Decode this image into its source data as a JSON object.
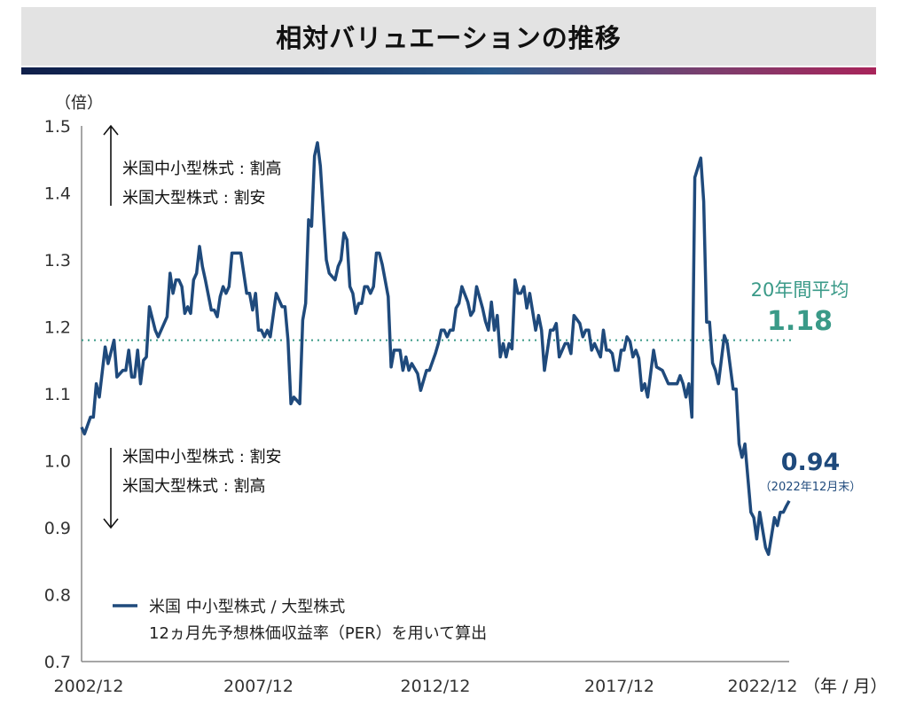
{
  "title": "相対バリュエーションの推移",
  "colors": {
    "series": "#1f4a7c",
    "average": "#3a9a88",
    "axis": "#888888",
    "text": "#222222"
  },
  "chart_data": {
    "type": "line",
    "title": "相対バリュエーションの推移",
    "ylabel": "（倍）",
    "xlabel_unit": "（年 / 月）",
    "ylim": [
      0.7,
      1.5
    ],
    "yticks": [
      "0.7",
      "0.8",
      "0.9",
      "1.0",
      "1.1",
      "1.2",
      "1.3",
      "1.4",
      "1.5"
    ],
    "xlim": [
      "2002/12",
      "2022/12"
    ],
    "xticks": [
      "2002/12",
      "2007/12",
      "2012/12",
      "2017/12",
      "2022/12"
    ],
    "grid": false,
    "legend": {
      "placement": "bottom-left",
      "line1": "米国 中小型株式 / 大型株式",
      "line2": "12ヵ月先予想株価収益率（PER）を用いて算出"
    },
    "annotations": {
      "upper": [
        "米国中小型株式 : 割高",
        "米国大型株式 : 割安"
      ],
      "lower": [
        "米国中小型株式 : 割安",
        "米国大型株式 : 割高"
      ],
      "average_label": "20年間平均",
      "average_value": "1.18",
      "latest_value": "0.94",
      "latest_note": "（2022年12月末）"
    },
    "average": 1.18,
    "series": [
      {
        "points": [
          [
            "2002/12",
            1.05
          ],
          [
            "2003/01",
            1.04
          ],
          [
            "2003/03",
            1.065
          ],
          [
            "2003/04",
            1.065
          ],
          [
            "2003/05",
            1.115
          ],
          [
            "2003/06",
            1.095
          ],
          [
            "2003/08",
            1.17
          ],
          [
            "2003/09",
            1.145
          ],
          [
            "2003/11",
            1.18
          ],
          [
            "2003/12",
            1.125
          ],
          [
            "2004/02",
            1.135
          ],
          [
            "2004/03",
            1.135
          ],
          [
            "2004/04",
            1.165
          ],
          [
            "2004/05",
            1.125
          ],
          [
            "2004/06",
            1.125
          ],
          [
            "2004/07",
            1.165
          ],
          [
            "2004/08",
            1.115
          ],
          [
            "2004/09",
            1.15
          ],
          [
            "2004/10",
            1.155
          ],
          [
            "2004/11",
            1.23
          ],
          [
            "2005/01",
            1.195
          ],
          [
            "2005/02",
            1.185
          ],
          [
            "2005/05",
            1.215
          ],
          [
            "2005/06",
            1.28
          ],
          [
            "2005/07",
            1.25
          ],
          [
            "2005/08",
            1.27
          ],
          [
            "2005/09",
            1.27
          ],
          [
            "2005/10",
            1.26
          ],
          [
            "2005/11",
            1.22
          ],
          [
            "2005/12",
            1.23
          ],
          [
            "2006/01",
            1.22
          ],
          [
            "2006/02",
            1.27
          ],
          [
            "2006/03",
            1.28
          ],
          [
            "2006/04",
            1.32
          ],
          [
            "2006/05",
            1.29
          ],
          [
            "2006/06",
            1.27
          ],
          [
            "2006/08",
            1.225
          ],
          [
            "2006/09",
            1.225
          ],
          [
            "2006/10",
            1.215
          ],
          [
            "2006/11",
            1.245
          ],
          [
            "2006/12",
            1.26
          ],
          [
            "2007/01",
            1.25
          ],
          [
            "2007/02",
            1.26
          ],
          [
            "2007/03",
            1.31
          ],
          [
            "2007/06",
            1.31
          ],
          [
            "2007/08",
            1.25
          ],
          [
            "2007/09",
            1.25
          ],
          [
            "2007/10",
            1.225
          ],
          [
            "2007/11",
            1.25
          ],
          [
            "2007/12",
            1.195
          ],
          [
            "2008/01",
            1.195
          ],
          [
            "2008/02",
            1.185
          ],
          [
            "2008/03",
            1.195
          ],
          [
            "2008/04",
            1.185
          ],
          [
            "2008/06",
            1.25
          ],
          [
            "2008/08",
            1.23
          ],
          [
            "2008/09",
            1.23
          ],
          [
            "2008/10",
            1.18
          ],
          [
            "2008/11",
            1.085
          ],
          [
            "2008/12",
            1.095
          ],
          [
            "2009/02",
            1.085
          ],
          [
            "2009/03",
            1.21
          ],
          [
            "2009/04",
            1.235
          ],
          [
            "2009/05",
            1.36
          ],
          [
            "2009/06",
            1.35
          ],
          [
            "2009/07",
            1.455
          ],
          [
            "2009/08",
            1.475
          ],
          [
            "2009/09",
            1.44
          ],
          [
            "2009/11",
            1.3
          ],
          [
            "2009/12",
            1.28
          ],
          [
            "2010/02",
            1.27
          ],
          [
            "2010/03",
            1.29
          ],
          [
            "2010/04",
            1.3
          ],
          [
            "2010/05",
            1.34
          ],
          [
            "2010/06",
            1.33
          ],
          [
            "2010/07",
            1.26
          ],
          [
            "2010/08",
            1.25
          ],
          [
            "2010/09",
            1.22
          ],
          [
            "2010/10",
            1.235
          ],
          [
            "2010/11",
            1.235
          ],
          [
            "2010/12",
            1.26
          ],
          [
            "2011/01",
            1.26
          ],
          [
            "2011/02",
            1.25
          ],
          [
            "2011/03",
            1.26
          ],
          [
            "2011/04",
            1.31
          ],
          [
            "2011/05",
            1.31
          ],
          [
            "2011/06",
            1.293
          ],
          [
            "2011/08",
            1.245
          ],
          [
            "2011/09",
            1.14
          ],
          [
            "2011/10",
            1.165
          ],
          [
            "2011/12",
            1.165
          ],
          [
            "2012/01",
            1.135
          ],
          [
            "2012/02",
            1.155
          ],
          [
            "2012/03",
            1.135
          ],
          [
            "2012/04",
            1.145
          ],
          [
            "2012/06",
            1.13
          ],
          [
            "2012/07",
            1.105
          ],
          [
            "2012/09",
            1.135
          ],
          [
            "2012/10",
            1.135
          ],
          [
            "2012/12",
            1.16
          ],
          [
            "2013/01",
            1.175
          ],
          [
            "2013/02",
            1.195
          ],
          [
            "2013/03",
            1.195
          ],
          [
            "2013/04",
            1.185
          ],
          [
            "2013/05",
            1.195
          ],
          [
            "2013/06",
            1.195
          ],
          [
            "2013/07",
            1.228
          ],
          [
            "2013/08",
            1.235
          ],
          [
            "2013/09",
            1.26
          ],
          [
            "2013/11",
            1.237
          ],
          [
            "2013/12",
            1.217
          ],
          [
            "2014/01",
            1.224
          ],
          [
            "2014/02",
            1.26
          ],
          [
            "2014/04",
            1.228
          ],
          [
            "2014/05",
            1.208
          ],
          [
            "2014/06",
            1.195
          ],
          [
            "2014/07",
            1.237
          ],
          [
            "2014/08",
            1.195
          ],
          [
            "2014/09",
            1.217
          ],
          [
            "2014/10",
            1.155
          ],
          [
            "2014/11",
            1.175
          ],
          [
            "2014/12",
            1.155
          ],
          [
            "2015/01",
            1.175
          ],
          [
            "2015/02",
            1.167
          ],
          [
            "2015/03",
            1.27
          ],
          [
            "2015/04",
            1.25
          ],
          [
            "2015/05",
            1.25
          ],
          [
            "2015/06",
            1.26
          ],
          [
            "2015/07",
            1.228
          ],
          [
            "2015/08",
            1.25
          ],
          [
            "2015/10",
            1.195
          ],
          [
            "2015/11",
            1.217
          ],
          [
            "2015/12",
            1.195
          ],
          [
            "2016/01",
            1.135
          ],
          [
            "2016/03",
            1.195
          ],
          [
            "2016/04",
            1.195
          ],
          [
            "2016/05",
            1.205
          ],
          [
            "2016/06",
            1.155
          ],
          [
            "2016/08",
            1.175
          ],
          [
            "2016/09",
            1.175
          ],
          [
            "2016/10",
            1.16
          ],
          [
            "2016/11",
            1.217
          ],
          [
            "2017/01",
            1.205
          ],
          [
            "2017/02",
            1.185
          ],
          [
            "2017/03",
            1.195
          ],
          [
            "2017/04",
            1.195
          ],
          [
            "2017/05",
            1.165
          ],
          [
            "2017/06",
            1.175
          ],
          [
            "2017/08",
            1.155
          ],
          [
            "2017/09",
            1.195
          ],
          [
            "2017/10",
            1.165
          ],
          [
            "2017/11",
            1.165
          ],
          [
            "2017/12",
            1.16
          ],
          [
            "2018/01",
            1.135
          ],
          [
            "2018/02",
            1.135
          ],
          [
            "2018/03",
            1.165
          ],
          [
            "2018/04",
            1.165
          ],
          [
            "2018/05",
            1.185
          ],
          [
            "2018/06",
            1.178
          ],
          [
            "2018/07",
            1.155
          ],
          [
            "2018/08",
            1.165
          ],
          [
            "2018/09",
            1.153
          ],
          [
            "2018/10",
            1.105
          ],
          [
            "2018/11",
            1.115
          ],
          [
            "2018/12",
            1.095
          ],
          [
            "2019/02",
            1.165
          ],
          [
            "2019/03",
            1.14
          ],
          [
            "2019/05",
            1.135
          ],
          [
            "2019/07",
            1.115
          ],
          [
            "2019/10",
            1.115
          ],
          [
            "2019/11",
            1.127
          ],
          [
            "2019/12",
            1.115
          ],
          [
            "2020/01",
            1.095
          ],
          [
            "2020/02",
            1.115
          ],
          [
            "2020/03",
            1.065
          ],
          [
            "2020/04",
            1.423
          ],
          [
            "2020/06",
            1.452
          ],
          [
            "2020/07",
            1.387
          ],
          [
            "2020/08",
            1.207
          ],
          [
            "2020/09",
            1.207
          ],
          [
            "2020/10",
            1.146
          ],
          [
            "2020/11",
            1.135
          ],
          [
            "2020/12",
            1.115
          ],
          [
            "2021/02",
            1.187
          ],
          [
            "2021/03",
            1.175
          ],
          [
            "2021/05",
            1.107
          ],
          [
            "2021/06",
            1.107
          ],
          [
            "2021/07",
            1.025
          ],
          [
            "2021/08",
            1.005
          ],
          [
            "2021/09",
            1.025
          ],
          [
            "2021/11",
            0.923
          ],
          [
            "2021/12",
            0.915
          ],
          [
            "2022/01",
            0.883
          ],
          [
            "2022/02",
            0.923
          ],
          [
            "2022/04",
            0.87
          ],
          [
            "2022/05",
            0.86
          ],
          [
            "2022/07",
            0.915
          ],
          [
            "2022/08",
            0.903
          ],
          [
            "2022/09",
            0.923
          ],
          [
            "2022/10",
            0.923
          ],
          [
            "2022/11",
            0.932
          ],
          [
            "2022/12",
            0.94
          ]
        ]
      }
    ]
  }
}
